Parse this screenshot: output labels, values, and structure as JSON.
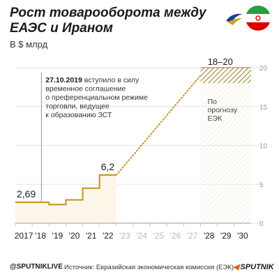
{
  "header": {
    "title": "Рост товарооборота между ЕАЭС и Ираном",
    "subtitle": "В $ млрд"
  },
  "logos": [
    {
      "name": "eaeu-emblem",
      "colors": [
        "#1f3f8a",
        "#c9a227",
        "#ffffff"
      ]
    },
    {
      "name": "iran-flag",
      "colors": [
        "#239f40",
        "#ffffff",
        "#da0000"
      ]
    }
  ],
  "annotation": {
    "date": "27.10.2019",
    "lines": [
      " вступило в силу",
      "временное соглашение",
      "о преференциальном режиме",
      "торговли, ведущее",
      "к образованию ЗСТ"
    ]
  },
  "forecast_note": [
    "По",
    "прогнозу",
    "ЕЭК"
  ],
  "footer": {
    "handle": "@SPUTNIKLIVE",
    "source": "Источник: Евразийская экономическая комиссия (ЕЭК)",
    "brand": "SPUTNIK"
  },
  "colors": {
    "line": "#c49a2c",
    "forecast": "#9a7a1e",
    "text": "#1a1a1a",
    "muted": "#bbbbbb",
    "grid": "#e5e5e5"
  },
  "chart_data": {
    "type": "line",
    "x_labels": [
      "2017",
      "'18",
      "'19",
      "'20",
      "'21",
      "'22",
      "'23",
      "'24",
      "'25",
      "'26",
      "'27",
      "'28",
      "'29",
      "'30"
    ],
    "x_labels_muted": [
      false,
      false,
      false,
      false,
      false,
      false,
      true,
      true,
      true,
      true,
      true,
      false,
      false,
      false
    ],
    "y_ticks": [
      0,
      5,
      10,
      15,
      20
    ],
    "ylim": [
      0,
      20
    ],
    "series": [
      {
        "type": "step",
        "points": [
          {
            "x": "2017",
            "y": 2.69
          },
          {
            "x": "2018",
            "y": 2.69
          },
          {
            "x": "2019",
            "y": 2.4
          },
          {
            "x": "2020",
            "y": 3.0
          },
          {
            "x": "2021",
            "y": 4.5
          },
          {
            "x": "2022",
            "y": 6.2
          }
        ],
        "end": "2023"
      }
    ],
    "projection": {
      "from": {
        "x": "2023",
        "y": 6.2
      },
      "to": {
        "x": "2028",
        "y": 19
      }
    },
    "forecast_range": {
      "x_from": "2028",
      "x_to": "2031",
      "y_min": 18,
      "y_max": 20,
      "label": "18–20"
    },
    "data_labels": [
      {
        "x": "2017",
        "y": 2.69,
        "text": "2,69"
      },
      {
        "x": "2022",
        "y": 6.2,
        "text": "6,2"
      }
    ],
    "event_marker": "2019"
  }
}
